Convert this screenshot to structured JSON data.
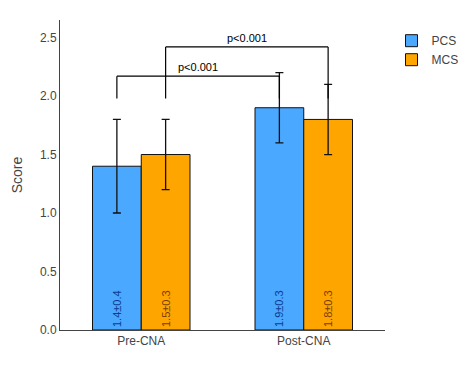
{
  "chart_data": {
    "type": "bar",
    "categories": [
      "Pre-CNA",
      "Post-CNA"
    ],
    "series": [
      {
        "name": "PCS",
        "color": "#4AA8FF",
        "values": [
          1.4,
          1.9
        ],
        "errors": [
          0.4,
          0.3
        ],
        "value_labels": [
          "1.4±0.4",
          "1.9±0.3"
        ]
      },
      {
        "name": "MCS",
        "color": "#FFA500",
        "values": [
          1.5,
          1.8
        ],
        "errors": [
          0.3,
          0.3
        ],
        "value_labels": [
          "1.5±0.3",
          "1.8±0.3"
        ]
      }
    ],
    "ylabel": "Score",
    "ylim": [
      0,
      2.65
    ],
    "yticks": [
      {
        "value": 0.0,
        "label": "0.0"
      },
      0.5,
      {
        "value": 1.0,
        "label": "1.0"
      },
      1.5,
      {
        "value": 2.0,
        "label": "2.0"
      },
      2.5
    ],
    "annotations": [
      {
        "text": "p<0.001",
        "series": "PCS",
        "from": "Pre-CNA",
        "to": "Post-CNA",
        "y_start": 1.98,
        "y_end": 2.17
      },
      {
        "text": "p<0.001",
        "series": "MCS",
        "from": "Pre-CNA",
        "to": "Post-CNA",
        "y_start": 1.98,
        "y_end": 2.42
      }
    ],
    "data_labels": true,
    "grid": false,
    "legend": "right"
  }
}
